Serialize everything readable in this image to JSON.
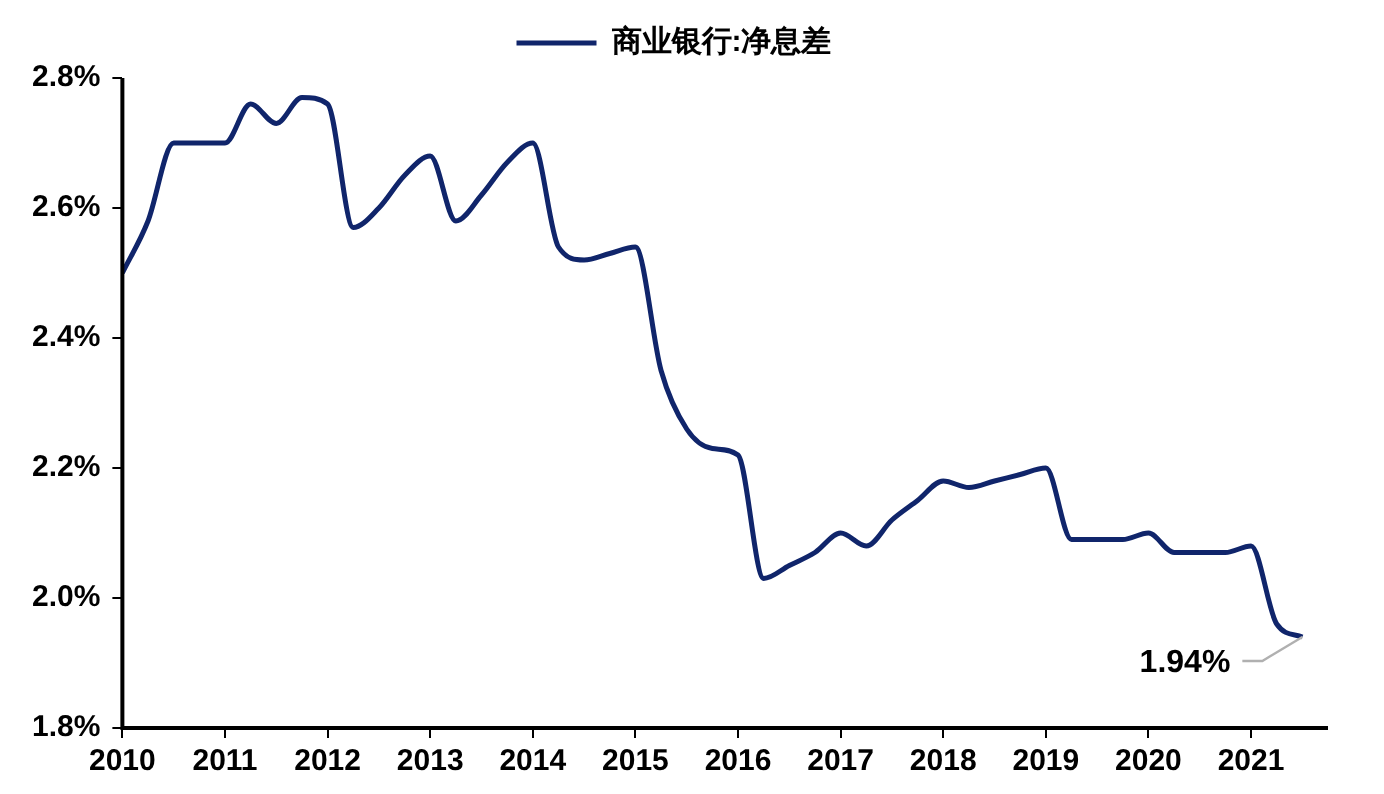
{
  "chart_data": {
    "type": "line",
    "x": [
      2010,
      2010.25,
      2010.5,
      2010.75,
      2011,
      2011.25,
      2011.5,
      2011.75,
      2012,
      2012.25,
      2012.5,
      2012.75,
      2013,
      2013.25,
      2013.5,
      2013.75,
      2014,
      2014.25,
      2014.5,
      2014.75,
      2015,
      2015.25,
      2015.5,
      2015.75,
      2016,
      2016.25,
      2016.5,
      2016.75,
      2017,
      2017.25,
      2017.5,
      2017.75,
      2018,
      2018.25,
      2018.5,
      2018.75,
      2019,
      2019.25,
      2019.5,
      2019.75,
      2020,
      2020.25,
      2020.5,
      2020.75,
      2021,
      2021.25,
      2021.5
    ],
    "series": [
      {
        "name": "商业银行:净息差",
        "color": "#10256b",
        "values": [
          2.5,
          2.58,
          2.7,
          2.7,
          2.7,
          2.76,
          2.73,
          2.77,
          2.76,
          2.57,
          2.6,
          2.65,
          2.68,
          2.58,
          2.62,
          2.67,
          2.7,
          2.54,
          2.52,
          2.53,
          2.54,
          2.35,
          2.26,
          2.23,
          2.22,
          2.03,
          2.05,
          2.07,
          2.1,
          2.08,
          2.12,
          2.15,
          2.18,
          2.17,
          2.18,
          2.19,
          2.2,
          2.09,
          2.09,
          2.09,
          2.1,
          2.07,
          2.07,
          2.07,
          2.08,
          1.96,
          1.94
        ]
      }
    ],
    "xlim": [
      2010,
      2021.75
    ],
    "xticks": [
      2010,
      2011,
      2012,
      2013,
      2014,
      2015,
      2016,
      2017,
      2018,
      2019,
      2020,
      2021
    ],
    "ylim": [
      1.8,
      2.8
    ],
    "yticks": [
      {
        "value": 1.8,
        "label": "1.8%"
      },
      {
        "value": 2.0,
        "label": "2.0%"
      },
      {
        "value": 2.2,
        "label": "2.2%"
      },
      {
        "value": 2.4,
        "label": "2.4%"
      },
      {
        "value": 2.6,
        "label": "2.6%"
      },
      {
        "value": 2.8,
        "label": "2.8%"
      }
    ],
    "annotations": [
      {
        "text": "1.94%",
        "x": 2021.5,
        "y": 1.94
      }
    ],
    "grid": false,
    "legend": "top",
    "marker": "none",
    "line_style": "solid"
  }
}
